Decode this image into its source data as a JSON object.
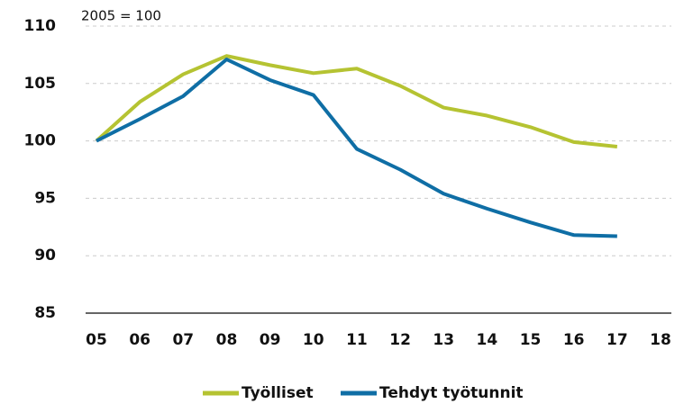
{
  "chart_data": {
    "type": "line",
    "annotation": "2005 = 100",
    "categories": [
      "05",
      "06",
      "07",
      "08",
      "09",
      "10",
      "11",
      "12",
      "13",
      "14",
      "15",
      "16",
      "17",
      "18"
    ],
    "series": [
      {
        "name": "Työlliset",
        "color": "#b5c332",
        "values": [
          100,
          103.4,
          105.8,
          107.4,
          106.6,
          105.9,
          106.3,
          104.8,
          102.9,
          102.2,
          101.2,
          99.9,
          99.5,
          null
        ]
      },
      {
        "name": "Tehdyt työtunnit",
        "color": "#0f6ea5",
        "values": [
          100,
          101.9,
          103.9,
          107.1,
          105.3,
          104.0,
          99.3,
          97.5,
          95.4,
          94.1,
          92.9,
          91.8,
          91.7,
          null
        ]
      }
    ],
    "ylim": [
      85,
      110
    ],
    "yticks": [
      85,
      90,
      95,
      100,
      105,
      110
    ],
    "grid": true,
    "legend": "bottom"
  }
}
